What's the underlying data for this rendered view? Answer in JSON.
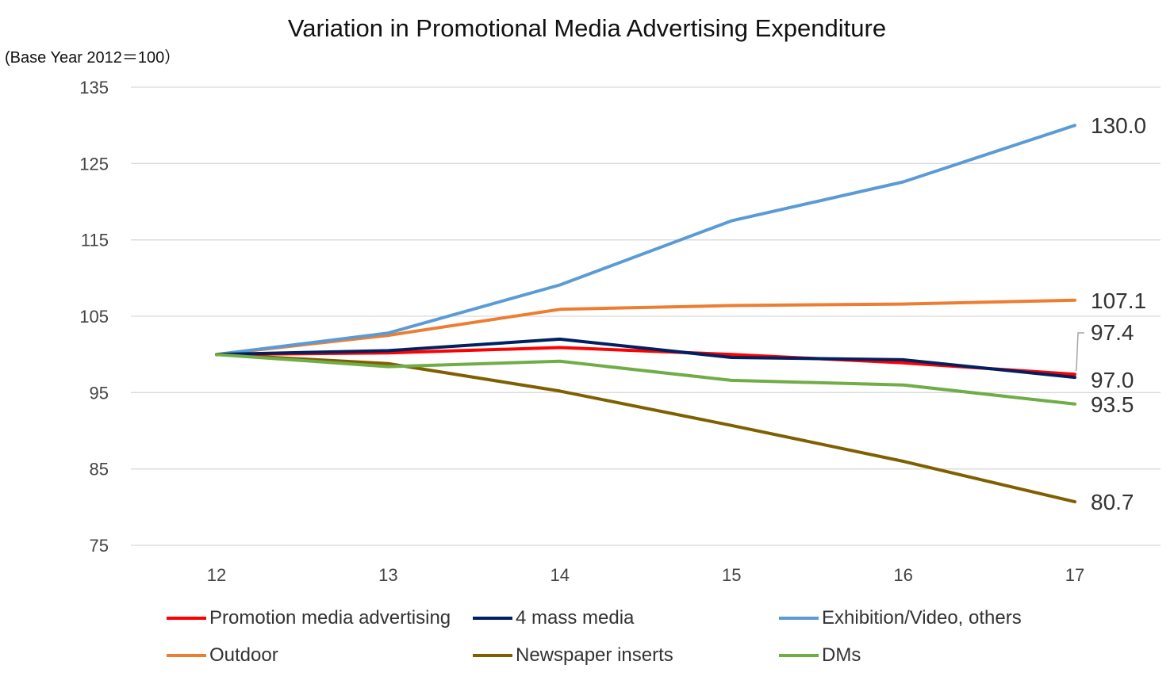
{
  "chart_data": {
    "type": "line",
    "title": "Variation in Promotional Media Advertising Expenditure",
    "ylabel": "(Base Year 2012＝100）",
    "xlabel": "",
    "x": [
      "12",
      "13",
      "14",
      "15",
      "16",
      "17"
    ],
    "ylim": [
      75,
      135
    ],
    "yticks": [
      75,
      85,
      95,
      105,
      115,
      125,
      135
    ],
    "grid": true,
    "legend_position": "bottom",
    "series": [
      {
        "name": "Promotion media advertising",
        "color": "#ff0000",
        "values": [
          100,
          100.2,
          100.9,
          100.0,
          98.9,
          97.4
        ],
        "end_label": "97.4"
      },
      {
        "name": "4 mass media",
        "color": "#002060",
        "values": [
          100,
          100.5,
          102.0,
          99.6,
          99.3,
          97.0
        ],
        "end_label": "97.0"
      },
      {
        "name": "Exhibition/Video, others",
        "color": "#5b9bd5",
        "values": [
          100,
          102.8,
          109.1,
          117.5,
          122.6,
          130.0
        ],
        "end_label": "130.0"
      },
      {
        "name": "Outdoor",
        "color": "#ed7d31",
        "values": [
          100,
          102.5,
          105.9,
          106.4,
          106.6,
          107.1
        ],
        "end_label": "107.1"
      },
      {
        "name": "Newspaper inserts",
        "color": "#7f6000",
        "values": [
          100,
          98.8,
          95.2,
          90.7,
          86.0,
          80.7
        ],
        "end_label": "80.7"
      },
      {
        "name": "DMs",
        "color": "#70ad47",
        "values": [
          100,
          98.4,
          99.1,
          96.6,
          96.0,
          93.5
        ],
        "end_label": "93.5"
      }
    ]
  }
}
